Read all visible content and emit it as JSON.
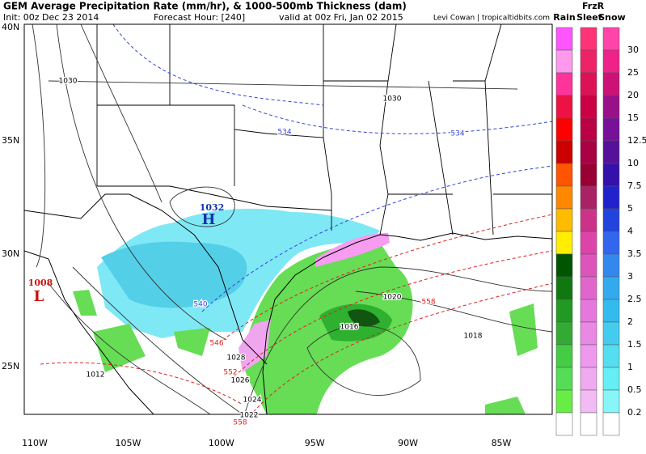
{
  "header": {
    "title": "GEM Average Precipitation Rate (mm/hr), & 1000-500mb Thickness (dam)",
    "init": "Init: 00z Dec 23 2014",
    "forecast_hour": "Forecast Hour: [240]",
    "valid": "valid at 00z Fri, Jan 02 2015",
    "credit": "Levi Cowan | tropicaltidbits.com"
  },
  "axes": {
    "lat_labels": [
      "40N",
      "35N",
      "30N",
      "25N"
    ],
    "lon_labels": [
      "110W",
      "105W",
      "100W",
      "95W",
      "90W",
      "85W"
    ]
  },
  "legend": {
    "frzr": "FrzR",
    "headers": [
      "Rain",
      "Sleet",
      "Snow"
    ],
    "values": [
      "30",
      "25",
      "20",
      "15",
      "12.5",
      "10",
      "7.5",
      "5",
      "4",
      "3.5",
      "3",
      "2.5",
      "2",
      "1.5",
      "1",
      "0.5",
      "0.2"
    ]
  },
  "map_labels": {
    "pressure": [
      "1030",
      "1030",
      "1020",
      "1016",
      "1018",
      "1012",
      "1028",
      "1026",
      "1024",
      "1022"
    ],
    "centers": [
      "1032",
      "H",
      "1008",
      "L"
    ],
    "thickness": [
      "534",
      "534",
      "540",
      "546",
      "558",
      "558",
      "552"
    ]
  }
}
